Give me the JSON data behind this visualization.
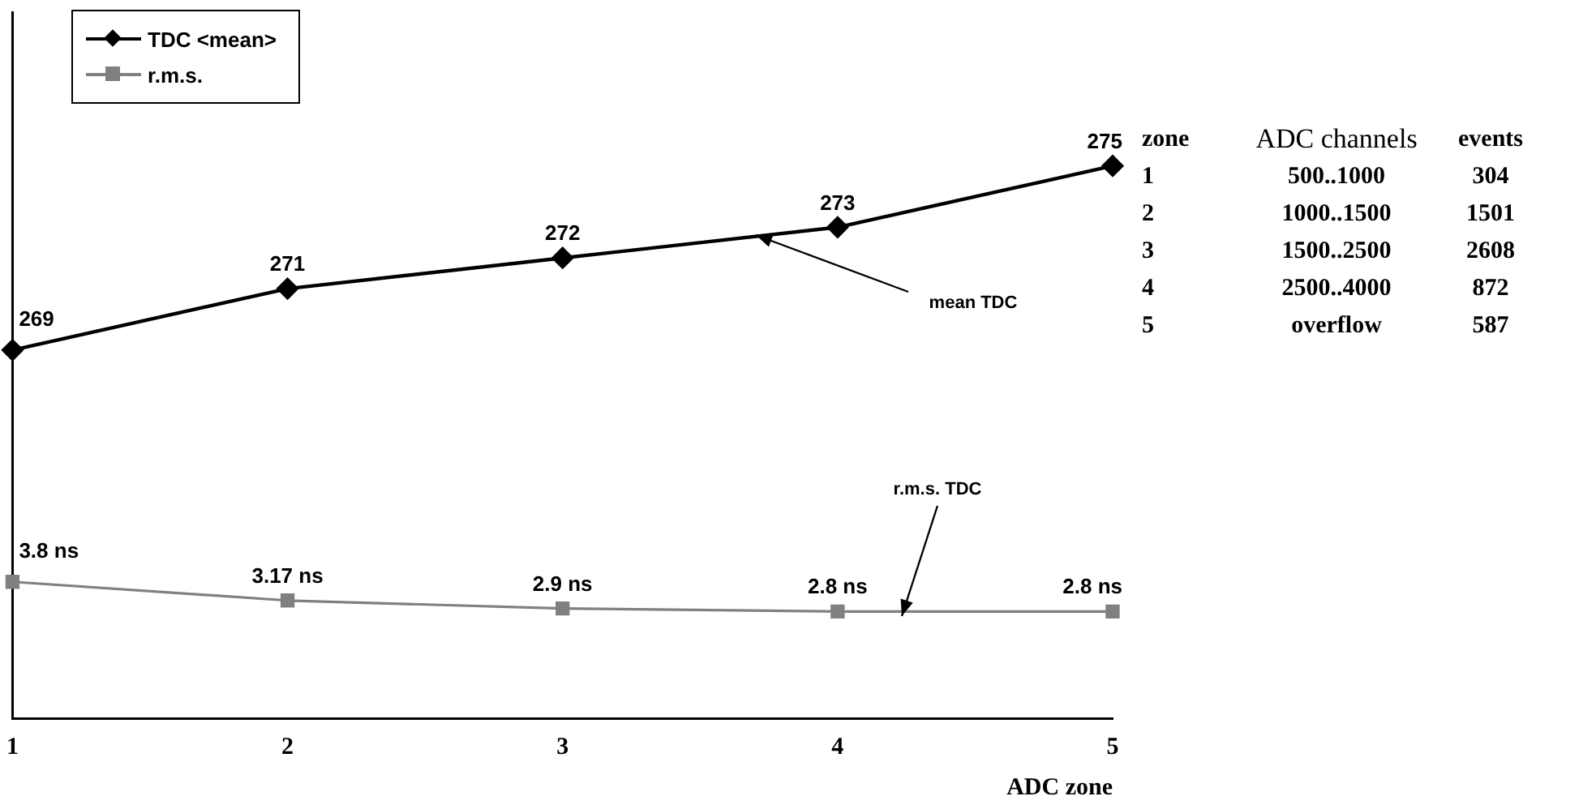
{
  "chart_data": {
    "type": "line",
    "categories": [
      "1",
      "2",
      "3",
      "4",
      "5"
    ],
    "xlabel": "ADC zone",
    "series": [
      {
        "name": "TDC <mean>",
        "color": "#000000",
        "marker": "diamond",
        "axis": "y",
        "values": [
          269,
          271,
          272,
          273,
          275
        ],
        "value_labels": [
          "269",
          "271",
          "272",
          "273",
          "275"
        ]
      },
      {
        "name": "r.m.s.",
        "color": "#808080",
        "marker": "square",
        "axis": "y2",
        "values": [
          3.8,
          3.17,
          2.9,
          2.8,
          2.8
        ],
        "value_labels": [
          "3.8 ns",
          "3.17 ns",
          "2.9 ns",
          "2.8 ns",
          "2.8 ns"
        ]
      }
    ],
    "ylim": [
      257,
      280
    ],
    "y2lim": [
      -0.8,
      23
    ],
    "tick_labels": "x",
    "grid": false,
    "legend": "top left",
    "line_style": "solid",
    "annotations": [
      "mean TDC",
      "r.m.s. TDC",
      "zone",
      "ADC channels",
      "events",
      "1",
      "500..1000",
      "304",
      "2",
      "1000..1500",
      "1501",
      "3",
      "1500..2500",
      "2608",
      "4",
      "2500..4000",
      "872",
      "5",
      "overflow",
      "587"
    ]
  }
}
